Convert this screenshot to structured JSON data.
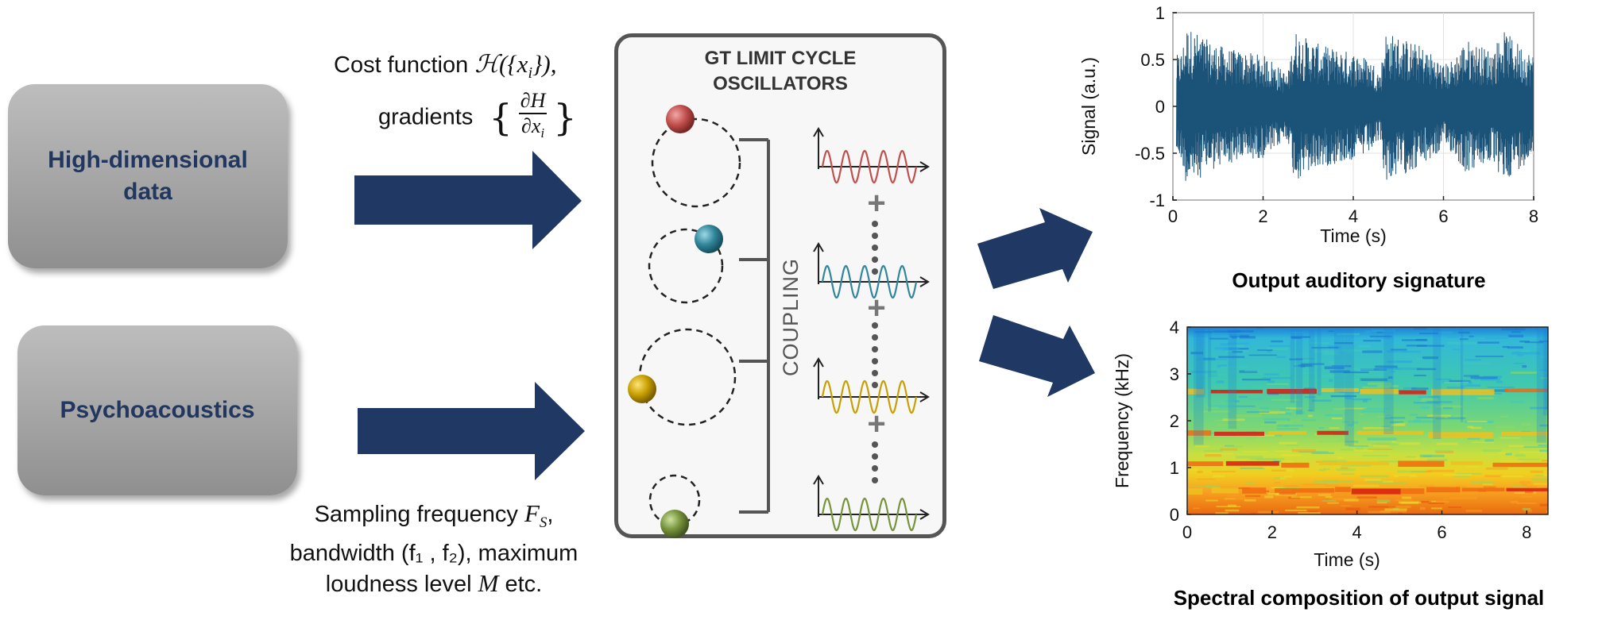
{
  "inputs": {
    "high_dim_line1": "High-dimensional",
    "high_dim_line2": "data",
    "psycho": "Psychoacoustics"
  },
  "captions": {
    "cost_prefix": "Cost function ",
    "cost_math": "ℋ({x",
    "cost_sub": "i",
    "cost_close": "}),",
    "gradients": "gradients",
    "grad_num": "∂H",
    "grad_den": "∂x",
    "grad_den_sub": "i",
    "sampling_line1_prefix": "Sampling frequency ",
    "sampling_math": "F",
    "sampling_sub": "S",
    "sampling_line1_suffix": ",",
    "sampling_line2": "bandwidth (f₁ , f₂), maximum",
    "sampling_line3_prefix": "loudness level ",
    "sampling_line3_math": "M",
    "sampling_line3_suffix": " etc."
  },
  "panel": {
    "title_line1": "GT LIMIT CYCLE",
    "title_line2": "OSCILLATORS",
    "coupling": "COUPLING",
    "plus": "+",
    "oscillator_colors": [
      "#c0504d",
      "#31869b",
      "#c8a000",
      "#77933c"
    ]
  },
  "colors": {
    "arrow": "#1f3864",
    "signal": "#1b5278",
    "input_text": "#21375f"
  },
  "chart_data": [
    {
      "type": "line",
      "title": "Output auditory signature",
      "xlabel": "Time (s)",
      "ylabel": "Signal (a.u.)",
      "xlim": [
        0,
        8
      ],
      "ylim": [
        -1,
        1
      ],
      "xticks": [
        "0",
        "2",
        "4",
        "6",
        "8"
      ],
      "yticks": [
        "1",
        "0.5",
        "0",
        "-0.5",
        "-1"
      ],
      "grid": true,
      "envelope": {
        "x": [
          0.1,
          0.2,
          0.3,
          0.5,
          0.8,
          1.2,
          1.6,
          2.0,
          2.2,
          2.4,
          2.55,
          2.7,
          2.9,
          3.3,
          3.8,
          4.2,
          4.5,
          4.6,
          4.7,
          5.0,
          5.5,
          5.8,
          6.0,
          6.2,
          6.5,
          6.8,
          7.1,
          7.3,
          7.6,
          8.0
        ],
        "amplitude": [
          0.55,
          0.6,
          0.85,
          0.8,
          0.7,
          0.62,
          0.58,
          0.55,
          0.5,
          0.4,
          0.35,
          0.82,
          0.75,
          0.65,
          0.6,
          0.55,
          0.45,
          0.35,
          0.8,
          0.75,
          0.65,
          0.55,
          0.45,
          0.5,
          0.72,
          0.65,
          0.6,
          0.82,
          0.7,
          0.55
        ]
      }
    },
    {
      "type": "heatmap",
      "title": "Spectral composition of output signal",
      "xlabel": "Time (s)",
      "ylabel": "Frequency (kHz)",
      "xlim": [
        0,
        8.5
      ],
      "ylim": [
        0,
        4
      ],
      "xticks": [
        "0",
        "2",
        "4",
        "6",
        "8"
      ],
      "yticks": [
        "4",
        "3",
        "2",
        "1",
        "0"
      ],
      "bands_khz": [
        {
          "freq": 0.5,
          "intensity": 0.95
        },
        {
          "freq": 1.05,
          "intensity": 0.85
        },
        {
          "freq": 1.7,
          "intensity": 0.6
        },
        {
          "freq": 2.6,
          "intensity": 0.5
        }
      ]
    }
  ]
}
